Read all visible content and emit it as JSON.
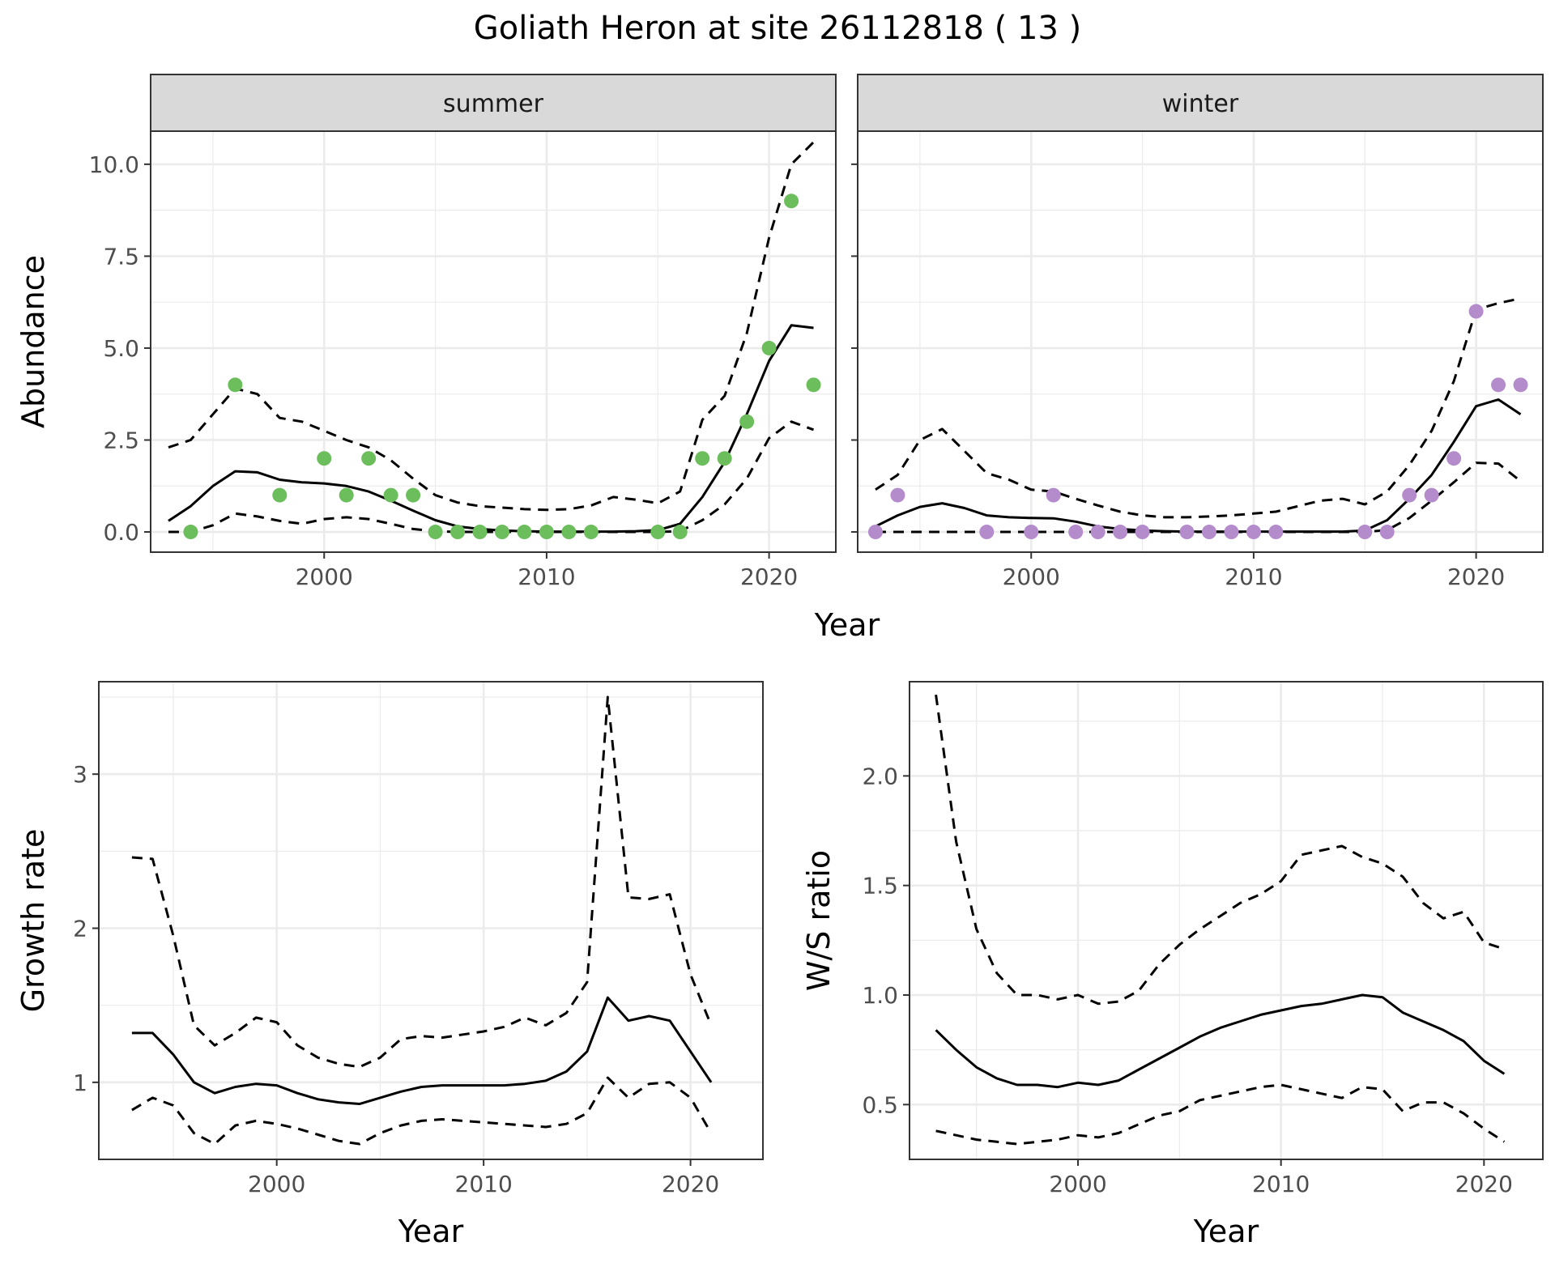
{
  "title": "Goliath Heron at site 26112818 ( 13 )",
  "colors": {
    "summer": "#6cbd5c",
    "winter": "#b48ccb",
    "line": "#000000",
    "grid": "#ebebeb",
    "strip": "#d9d9d9"
  },
  "chart_data": [
    {
      "type": "line",
      "facet": "summer",
      "strip_label": "summer",
      "xlabel": "Year",
      "ylabel": "Abundance",
      "xlim": [
        1992.2,
        2023.0
      ],
      "ylim": [
        -0.55,
        10.9
      ],
      "xticks": [
        2000,
        2010,
        2020
      ],
      "xtick_labels": [
        "2000",
        "2010",
        "2020"
      ],
      "yticks": [
        0,
        2.5,
        5,
        7.5,
        10
      ],
      "ytick_labels": [
        "0.0",
        "2.5",
        "5.0",
        "7.5",
        "10.0"
      ],
      "grid": true,
      "points": {
        "x": [
          1994,
          1996,
          1998,
          2000,
          2001,
          2002,
          2003,
          2004,
          2005,
          2006,
          2007,
          2008,
          2009,
          2010,
          2011,
          2012,
          2015,
          2016,
          2017,
          2018,
          2019,
          2020,
          2021,
          2022
        ],
        "y": [
          0,
          4,
          1,
          2,
          1,
          2,
          1,
          1,
          0,
          0,
          0,
          0,
          0,
          0,
          0,
          0,
          0,
          0,
          2,
          2,
          3,
          5,
          9,
          4
        ]
      },
      "series": [
        {
          "role": "estimate",
          "style": "solid",
          "x": [
            1993,
            1994,
            1995,
            1996,
            1997,
            1998,
            1999,
            2000,
            2001,
            2002,
            2003,
            2004,
            2005,
            2006,
            2007,
            2008,
            2009,
            2010,
            2011,
            2012,
            2013,
            2014,
            2015,
            2016,
            2017,
            2018,
            2019,
            2020,
            2021,
            2022
          ],
          "y": [
            0.3,
            0.7,
            1.25,
            1.65,
            1.62,
            1.42,
            1.35,
            1.32,
            1.25,
            1.1,
            0.85,
            0.58,
            0.32,
            0.15,
            0.08,
            0.04,
            0.02,
            0.01,
            0.01,
            0.01,
            0.01,
            0.02,
            0.05,
            0.22,
            0.95,
            1.9,
            3.2,
            4.65,
            5.62,
            5.55
          ]
        },
        {
          "role": "upper",
          "style": "dashed",
          "x": [
            1993,
            1994,
            1995,
            1996,
            1997,
            1998,
            1999,
            2000,
            2001,
            2002,
            2003,
            2004,
            2005,
            2006,
            2007,
            2008,
            2009,
            2010,
            2011,
            2012,
            2013,
            2014,
            2015,
            2016,
            2017,
            2018,
            2019,
            2020,
            2021,
            2022
          ],
          "y": [
            2.3,
            2.5,
            3.2,
            3.9,
            3.75,
            3.1,
            3.0,
            2.75,
            2.5,
            2.3,
            1.95,
            1.45,
            1.0,
            0.8,
            0.7,
            0.66,
            0.62,
            0.6,
            0.62,
            0.72,
            0.95,
            0.88,
            0.78,
            1.1,
            3.05,
            3.7,
            5.4,
            8.0,
            10.0,
            10.6
          ]
        },
        {
          "role": "lower",
          "style": "dashed",
          "x": [
            1993,
            1994,
            1995,
            1996,
            1997,
            1998,
            1999,
            2000,
            2001,
            2002,
            2003,
            2004,
            2005,
            2006,
            2007,
            2008,
            2009,
            2010,
            2011,
            2012,
            2013,
            2014,
            2015,
            2016,
            2017,
            2018,
            2019,
            2020,
            2021,
            2022
          ],
          "y": [
            0.0,
            0.0,
            0.18,
            0.5,
            0.42,
            0.3,
            0.22,
            0.35,
            0.4,
            0.35,
            0.22,
            0.08,
            0.02,
            0.0,
            0.0,
            0.0,
            0.0,
            0.0,
            0.0,
            0.0,
            0.0,
            0.0,
            0.0,
            0.02,
            0.32,
            0.75,
            1.45,
            2.55,
            3.0,
            2.78
          ]
        }
      ]
    },
    {
      "type": "line",
      "facet": "winter",
      "strip_label": "winter",
      "xlabel": "Year",
      "ylabel": "",
      "xlim": [
        1992.2,
        2023.0
      ],
      "ylim": [
        -0.55,
        10.9
      ],
      "xticks": [
        2000,
        2010,
        2020
      ],
      "xtick_labels": [
        "2000",
        "2010",
        "2020"
      ],
      "yticks": [
        0,
        2.5,
        5,
        7.5,
        10
      ],
      "ytick_labels": [],
      "grid": true,
      "points": {
        "x": [
          1993,
          1994,
          1998,
          2000,
          2001,
          2002,
          2003,
          2004,
          2005,
          2007,
          2008,
          2009,
          2010,
          2011,
          2015,
          2016,
          2017,
          2018,
          2019,
          2020,
          2021,
          2022
        ],
        "y": [
          0,
          1,
          0,
          0,
          1,
          0,
          0,
          0,
          0,
          0,
          0,
          0,
          0,
          0,
          0,
          0,
          1,
          1,
          2,
          6,
          4,
          4
        ]
      },
      "series": [
        {
          "role": "estimate",
          "style": "solid",
          "x": [
            1993,
            1994,
            1995,
            1996,
            1997,
            1998,
            1999,
            2000,
            2001,
            2002,
            2003,
            2004,
            2005,
            2006,
            2007,
            2008,
            2009,
            2010,
            2011,
            2012,
            2013,
            2014,
            2015,
            2016,
            2017,
            2018,
            2019,
            2020,
            2021,
            2022
          ],
          "y": [
            0.15,
            0.45,
            0.68,
            0.78,
            0.65,
            0.45,
            0.4,
            0.38,
            0.37,
            0.28,
            0.15,
            0.08,
            0.04,
            0.02,
            0.01,
            0.01,
            0.01,
            0.01,
            0.01,
            0.01,
            0.01,
            0.01,
            0.04,
            0.32,
            0.9,
            1.55,
            2.45,
            3.42,
            3.6,
            3.2
          ]
        },
        {
          "role": "upper",
          "style": "dashed",
          "x": [
            1993,
            1994,
            1995,
            1996,
            1997,
            1998,
            1999,
            2000,
            2001,
            2002,
            2003,
            2004,
            2005,
            2006,
            2007,
            2008,
            2009,
            2010,
            2011,
            2012,
            2013,
            2014,
            2015,
            2016,
            2017,
            2018,
            2019,
            2020,
            2021,
            2022
          ],
          "y": [
            1.15,
            1.55,
            2.5,
            2.8,
            2.2,
            1.6,
            1.42,
            1.15,
            1.1,
            0.9,
            0.72,
            0.55,
            0.45,
            0.4,
            0.4,
            0.42,
            0.45,
            0.5,
            0.55,
            0.7,
            0.85,
            0.9,
            0.75,
            1.1,
            1.82,
            2.75,
            4.1,
            6.05,
            6.22,
            6.35
          ]
        },
        {
          "role": "lower",
          "style": "dashed",
          "x": [
            1993,
            1994,
            1995,
            1996,
            1997,
            1998,
            1999,
            2000,
            2001,
            2002,
            2003,
            2004,
            2005,
            2006,
            2007,
            2008,
            2009,
            2010,
            2011,
            2012,
            2013,
            2014,
            2015,
            2016,
            2017,
            2018,
            2019,
            2020,
            2021,
            2022
          ],
          "y": [
            0,
            0,
            0,
            0,
            0,
            0,
            0,
            0,
            0,
            0,
            0,
            0,
            0,
            0,
            0,
            0,
            0,
            0,
            0,
            0,
            0,
            0,
            0,
            0.05,
            0.38,
            0.85,
            1.35,
            1.88,
            1.86,
            1.38
          ]
        }
      ]
    },
    {
      "type": "line",
      "xlabel": "Year",
      "ylabel": "Growth rate",
      "xlim": [
        1991.4,
        2023.5
      ],
      "ylim": [
        0.5,
        3.6
      ],
      "xticks": [
        2000,
        2010,
        2020
      ],
      "xtick_labels": [
        "2000",
        "2010",
        "2020"
      ],
      "yticks": [
        1,
        2,
        3
      ],
      "ytick_labels": [
        "1",
        "2",
        "3"
      ],
      "grid": true,
      "series": [
        {
          "role": "estimate",
          "style": "solid",
          "x": [
            1993,
            1994,
            1995,
            1996,
            1997,
            1998,
            1999,
            2000,
            2001,
            2002,
            2003,
            2004,
            2005,
            2006,
            2007,
            2008,
            2009,
            2010,
            2011,
            2012,
            2013,
            2014,
            2015,
            2016,
            2017,
            2018,
            2019,
            2020,
            2021
          ],
          "y": [
            1.32,
            1.32,
            1.18,
            1.0,
            0.93,
            0.97,
            0.99,
            0.98,
            0.93,
            0.89,
            0.87,
            0.86,
            0.9,
            0.94,
            0.97,
            0.98,
            0.98,
            0.98,
            0.98,
            0.99,
            1.01,
            1.07,
            1.2,
            1.55,
            1.4,
            1.43,
            1.4,
            1.2,
            1.0
          ]
        },
        {
          "role": "upper",
          "style": "dashed",
          "x": [
            1993,
            1994,
            1995,
            1996,
            1997,
            1998,
            1999,
            2000,
            2001,
            2002,
            2003,
            2004,
            2005,
            2006,
            2007,
            2008,
            2009,
            2010,
            2011,
            2012,
            2013,
            2014,
            2015,
            2016,
            2017,
            2018,
            2019,
            2020,
            2021
          ],
          "y": [
            2.46,
            2.45,
            1.95,
            1.37,
            1.24,
            1.32,
            1.42,
            1.39,
            1.24,
            1.16,
            1.12,
            1.1,
            1.16,
            1.28,
            1.3,
            1.29,
            1.31,
            1.33,
            1.36,
            1.42,
            1.37,
            1.45,
            1.65,
            3.5,
            2.2,
            2.19,
            2.22,
            1.7,
            1.37
          ]
        },
        {
          "role": "lower",
          "style": "dashed",
          "x": [
            1993,
            1994,
            1995,
            1996,
            1997,
            1998,
            1999,
            2000,
            2001,
            2002,
            2003,
            2004,
            2005,
            2006,
            2007,
            2008,
            2009,
            2010,
            2011,
            2012,
            2013,
            2014,
            2015,
            2016,
            2017,
            2018,
            2019,
            2020,
            2021
          ],
          "y": [
            0.82,
            0.9,
            0.85,
            0.67,
            0.6,
            0.72,
            0.75,
            0.73,
            0.7,
            0.66,
            0.62,
            0.6,
            0.67,
            0.72,
            0.75,
            0.76,
            0.75,
            0.74,
            0.73,
            0.72,
            0.71,
            0.73,
            0.8,
            1.03,
            0.9,
            0.99,
            1.0,
            0.9,
            0.67
          ]
        }
      ]
    },
    {
      "type": "line",
      "xlabel": "Year",
      "ylabel": "W/S ratio",
      "xlim": [
        1991.7,
        2022.9
      ],
      "ylim": [
        0.25,
        2.43
      ],
      "xticks": [
        2000,
        2010,
        2020
      ],
      "xtick_labels": [
        "2000",
        "2010",
        "2020"
      ],
      "yticks": [
        0.5,
        1.0,
        1.5,
        2.0
      ],
      "ytick_labels": [
        "0.5",
        "1.0",
        "1.5",
        "2.0"
      ],
      "grid": true,
      "series": [
        {
          "role": "estimate",
          "style": "solid",
          "x": [
            1993,
            1994,
            1995,
            1996,
            1997,
            1998,
            1999,
            2000,
            2001,
            2002,
            2003,
            2004,
            2005,
            2006,
            2007,
            2008,
            2009,
            2010,
            2011,
            2012,
            2013,
            2014,
            2015,
            2016,
            2017,
            2018,
            2019,
            2020,
            2021
          ],
          "y": [
            0.84,
            0.75,
            0.67,
            0.62,
            0.59,
            0.59,
            0.58,
            0.6,
            0.59,
            0.61,
            0.66,
            0.71,
            0.76,
            0.81,
            0.85,
            0.88,
            0.91,
            0.93,
            0.95,
            0.96,
            0.98,
            1.0,
            0.99,
            0.92,
            0.88,
            0.84,
            0.79,
            0.7,
            0.64
          ]
        },
        {
          "role": "upper",
          "style": "dashed",
          "x": [
            1993,
            1994,
            1995,
            1996,
            1997,
            1998,
            1999,
            2000,
            2001,
            2002,
            2003,
            2004,
            2005,
            2006,
            2007,
            2008,
            2009,
            2010,
            2011,
            2012,
            2013,
            2014,
            2015,
            2016,
            2017,
            2018,
            2019,
            2020,
            2021
          ],
          "y": [
            2.37,
            1.7,
            1.3,
            1.1,
            1.0,
            1.0,
            0.98,
            1.0,
            0.96,
            0.97,
            1.02,
            1.14,
            1.23,
            1.3,
            1.36,
            1.42,
            1.46,
            1.52,
            1.64,
            1.66,
            1.68,
            1.63,
            1.6,
            1.54,
            1.42,
            1.35,
            1.38,
            1.24,
            1.21
          ]
        },
        {
          "role": "lower",
          "style": "dashed",
          "x": [
            1993,
            1994,
            1995,
            1996,
            1997,
            1998,
            1999,
            2000,
            2001,
            2002,
            2003,
            2004,
            2005,
            2006,
            2007,
            2008,
            2009,
            2010,
            2011,
            2012,
            2013,
            2014,
            2015,
            2016,
            2017,
            2018,
            2019,
            2020,
            2021
          ],
          "y": [
            0.38,
            0.36,
            0.34,
            0.33,
            0.32,
            0.33,
            0.34,
            0.36,
            0.35,
            0.37,
            0.41,
            0.45,
            0.47,
            0.52,
            0.54,
            0.56,
            0.58,
            0.59,
            0.57,
            0.55,
            0.53,
            0.58,
            0.57,
            0.47,
            0.51,
            0.51,
            0.46,
            0.39,
            0.33
          ]
        }
      ]
    }
  ]
}
